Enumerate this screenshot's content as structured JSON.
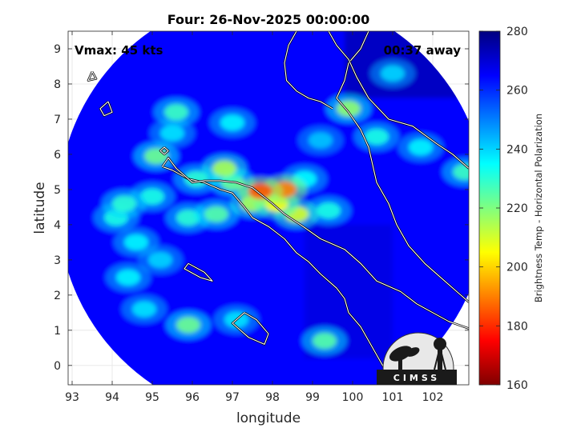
{
  "chart_data": {
    "type": "heatmap",
    "title": "Four: 26-Nov-2025 00:00:00",
    "xlabel": "longitude",
    "ylabel": "latitude",
    "xlim": [
      92.9,
      102.9
    ],
    "ylim": [
      -0.55,
      9.5
    ],
    "x_ticks": [
      93,
      94,
      95,
      96,
      97,
      98,
      99,
      100,
      101,
      102
    ],
    "y_ticks": [
      0,
      1,
      2,
      3,
      4,
      5,
      6,
      7,
      8,
      9
    ],
    "grid": true,
    "annotations": {
      "vmax": "Vmax: 45 kts",
      "time_away": "00:37 away"
    },
    "colorbar": {
      "label": "Brightness Temp - Horizontal Polarization",
      "ticks": [
        160,
        180,
        200,
        220,
        240,
        260,
        280
      ],
      "range": [
        160,
        280
      ],
      "colormap": "jet"
    },
    "swath_center": [
      98.0,
      4.5
    ],
    "swath_radius_deg": 5.35,
    "background_value": 265,
    "cold_features": [
      {
        "lon": 97.7,
        "lat": 4.95,
        "value": 185
      },
      {
        "lon": 98.3,
        "lat": 5.0,
        "value": 190
      },
      {
        "lon": 98.1,
        "lat": 4.6,
        "value": 205
      },
      {
        "lon": 97.5,
        "lat": 4.6,
        "value": 215
      },
      {
        "lon": 98.6,
        "lat": 4.3,
        "value": 210
      },
      {
        "lon": 97.0,
        "lat": 5.2,
        "value": 222
      },
      {
        "lon": 96.8,
        "lat": 5.6,
        "value": 215
      },
      {
        "lon": 95.1,
        "lat": 5.95,
        "value": 222
      },
      {
        "lon": 96.1,
        "lat": 5.3,
        "value": 230
      },
      {
        "lon": 95.0,
        "lat": 4.8,
        "value": 232
      },
      {
        "lon": 94.3,
        "lat": 4.6,
        "value": 230
      },
      {
        "lon": 94.1,
        "lat": 4.2,
        "value": 232
      },
      {
        "lon": 95.9,
        "lat": 4.2,
        "value": 230
      },
      {
        "lon": 96.6,
        "lat": 4.3,
        "value": 225
      },
      {
        "lon": 99.4,
        "lat": 4.4,
        "value": 232
      },
      {
        "lon": 98.8,
        "lat": 5.3,
        "value": 235
      },
      {
        "lon": 95.5,
        "lat": 6.6,
        "value": 238
      },
      {
        "lon": 95.6,
        "lat": 7.2,
        "value": 228
      },
      {
        "lon": 97.0,
        "lat": 6.9,
        "value": 236
      },
      {
        "lon": 94.6,
        "lat": 3.5,
        "value": 236
      },
      {
        "lon": 95.2,
        "lat": 3.0,
        "value": 240
      },
      {
        "lon": 94.4,
        "lat": 2.5,
        "value": 236
      },
      {
        "lon": 95.9,
        "lat": 1.15,
        "value": 222
      },
      {
        "lon": 94.8,
        "lat": 1.6,
        "value": 238
      },
      {
        "lon": 97.1,
        "lat": 1.3,
        "value": 238
      },
      {
        "lon": 99.3,
        "lat": 0.7,
        "value": 225
      },
      {
        "lon": 99.9,
        "lat": 7.3,
        "value": 218
      },
      {
        "lon": 100.6,
        "lat": 6.5,
        "value": 232
      },
      {
        "lon": 101.7,
        "lat": 6.2,
        "value": 236
      },
      {
        "lon": 102.8,
        "lat": 5.5,
        "value": 228
      },
      {
        "lon": 101.0,
        "lat": 8.3,
        "value": 240
      },
      {
        "lon": 99.2,
        "lat": 6.4,
        "value": 242
      }
    ],
    "warm_region": {
      "lon_min": 99.8,
      "lat_min": 7.6,
      "value": 272
    },
    "logo": "CIMSS"
  },
  "colors": {
    "background": "#ffffff",
    "coastline": "#ffffff",
    "coastline_outer": "#000000",
    "grid": "#e5e5e5",
    "axis": "#262626"
  }
}
